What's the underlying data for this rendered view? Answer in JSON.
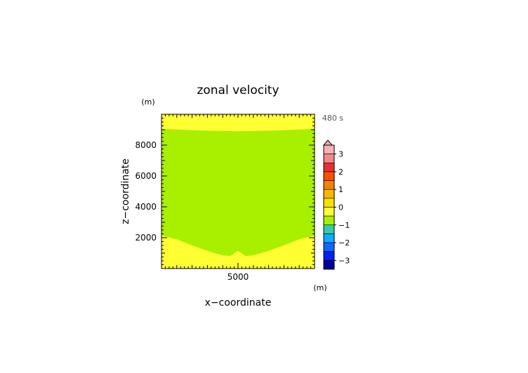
{
  "chart_data": {
    "type": "heatmap",
    "title": "zonal velocity",
    "xlabel": "x−coordinate",
    "ylabel": "z−coordinate",
    "x_unit": "(m)",
    "y_unit": "(m)",
    "time_label": "480 s",
    "x_ticks": [
      5000
    ],
    "y_ticks": [
      2000,
      4000,
      6000,
      8000
    ],
    "xlim": [
      0,
      10000
    ],
    "ylim": [
      0,
      10000
    ],
    "colorbar": {
      "ticks": [
        3,
        2,
        1,
        0,
        -1,
        -2,
        -3
      ],
      "tick_labels": [
        "3",
        "2",
        "1",
        "0",
        "−1",
        "−2",
        "−3"
      ],
      "range": [
        -3.5,
        3.5
      ],
      "interval": 0.5,
      "extend": "max",
      "colors": [
        "#f8b0b0",
        "#f08888",
        "#e83030",
        "#f85000",
        "#f88000",
        "#f8b800",
        "#f8e000",
        "#ffff33",
        "#a8f000",
        "#33ccaa",
        "#11aaff",
        "#1166ff",
        "#0022ee",
        "#000099"
      ]
    },
    "fields": {
      "upper_region_value": "0 to 0.5",
      "main_region_value": "-0.5 to 0",
      "upper_boundary_z": [
        {
          "x": 0,
          "z": 9050
        },
        {
          "x": 2500,
          "z": 8950
        },
        {
          "x": 5000,
          "z": 8900
        },
        {
          "x": 7500,
          "z": 8950
        },
        {
          "x": 10000,
          "z": 9050
        }
      ],
      "lower_boundary_z": [
        {
          "x": 0,
          "z": 2150
        },
        {
          "x": 1000,
          "z": 1900
        },
        {
          "x": 2000,
          "z": 1500
        },
        {
          "x": 3000,
          "z": 1150
        },
        {
          "x": 4000,
          "z": 850
        },
        {
          "x": 4500,
          "z": 820
        },
        {
          "x": 5000,
          "z": 1150
        },
        {
          "x": 5500,
          "z": 820
        },
        {
          "x": 6000,
          "z": 850
        },
        {
          "x": 7000,
          "z": 1150
        },
        {
          "x": 8000,
          "z": 1500
        },
        {
          "x": 9000,
          "z": 1900
        },
        {
          "x": 10000,
          "z": 2150
        }
      ]
    }
  }
}
